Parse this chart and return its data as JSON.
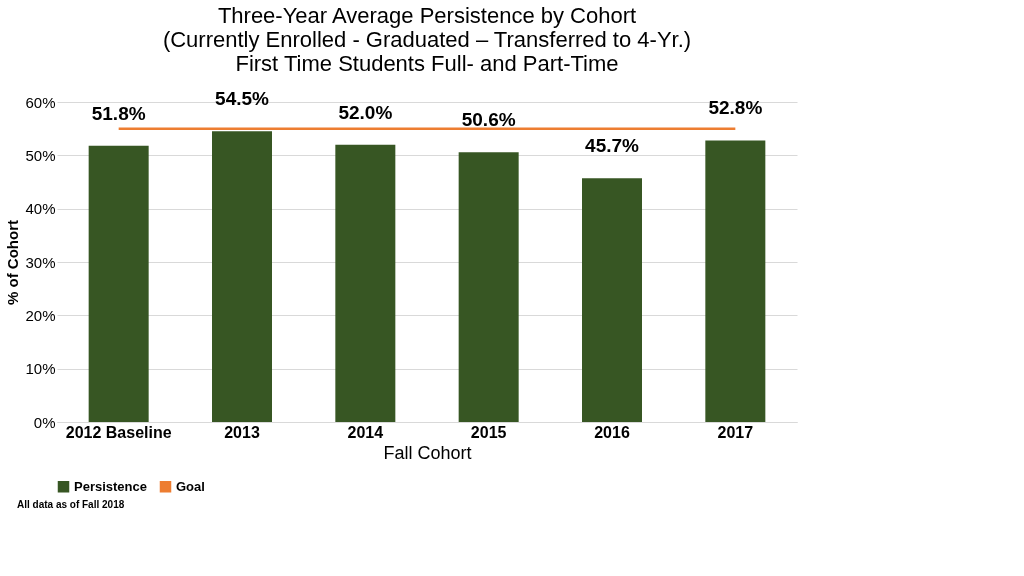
{
  "chart_data": {
    "type": "bar",
    "title": [
      "Three-Year Average Persistence by Cohort",
      "(Currently Enrolled - Graduated – Transferred to 4-Yr.)",
      "First Time Students Full- and Part-Time"
    ],
    "xlabel": "Fall Cohort",
    "ylabel": "% of Cohort",
    "categories": [
      "2012 Baseline",
      "2013",
      "2014",
      "2015",
      "2016",
      "2017"
    ],
    "series": [
      {
        "name": "Persistence",
        "type": "bar",
        "color": "#375623",
        "values": [
          51.8,
          54.5,
          52.0,
          50.6,
          45.7,
          52.8
        ],
        "value_labels": [
          "51.8%",
          "54.5%",
          "52.0%",
          "50.6%",
          "45.7%",
          "52.8%"
        ]
      },
      {
        "name": "Goal",
        "type": "line",
        "color": "#ed7d31",
        "values": [
          55,
          55,
          55,
          55,
          55,
          55
        ]
      }
    ],
    "ylim": [
      0,
      60
    ],
    "yticks": [
      {
        "value": 0,
        "label": "0%"
      },
      {
        "value": 10,
        "label": "10%"
      },
      {
        "value": 20,
        "label": "20%"
      },
      {
        "value": 30,
        "label": "30%"
      },
      {
        "value": 40,
        "label": "40%"
      },
      {
        "value": 50,
        "label": "50%"
      },
      {
        "value": 60,
        "label": "60%"
      }
    ],
    "grid": "y",
    "legend": "bottom",
    "annotations": [
      "All data as of Fall 2018"
    ]
  }
}
